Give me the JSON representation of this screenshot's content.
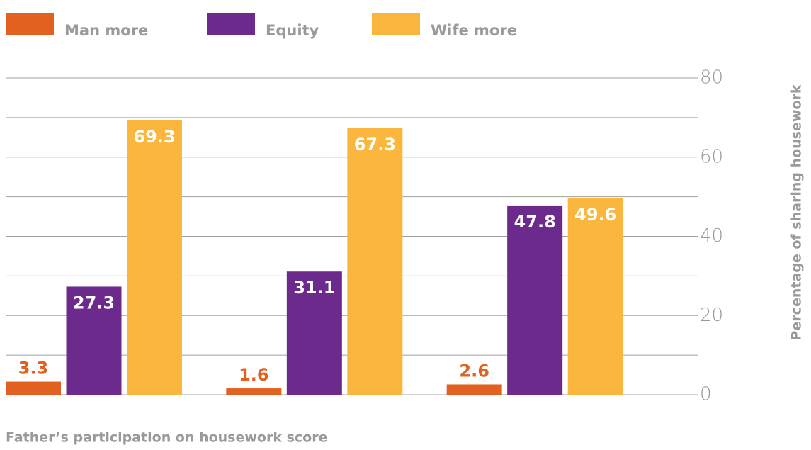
{
  "chart_data": {
    "type": "bar",
    "x_label": "Father’s participation on housework score",
    "y_label": "Percentage of sharing housework",
    "categories": [
      null,
      null,
      null
    ],
    "series": [
      {
        "name": "Man more",
        "color": "#e36120",
        "values": [
          3.3,
          1.6,
          2.6
        ]
      },
      {
        "name": "Equity",
        "color": "#6b2a8c",
        "values": [
          27.3,
          31.1,
          47.8
        ]
      },
      {
        "name": "Wife more",
        "color": "#fbb63d",
        "values": [
          69.3,
          67.3,
          49.6
        ]
      }
    ],
    "ylim": [
      0,
      80
    ],
    "yticks": [
      0,
      20,
      40,
      60,
      80
    ],
    "minor_yticks": [
      10,
      30,
      50,
      70
    ],
    "grid": true,
    "y_axis_side": "right",
    "legend": "top"
  }
}
